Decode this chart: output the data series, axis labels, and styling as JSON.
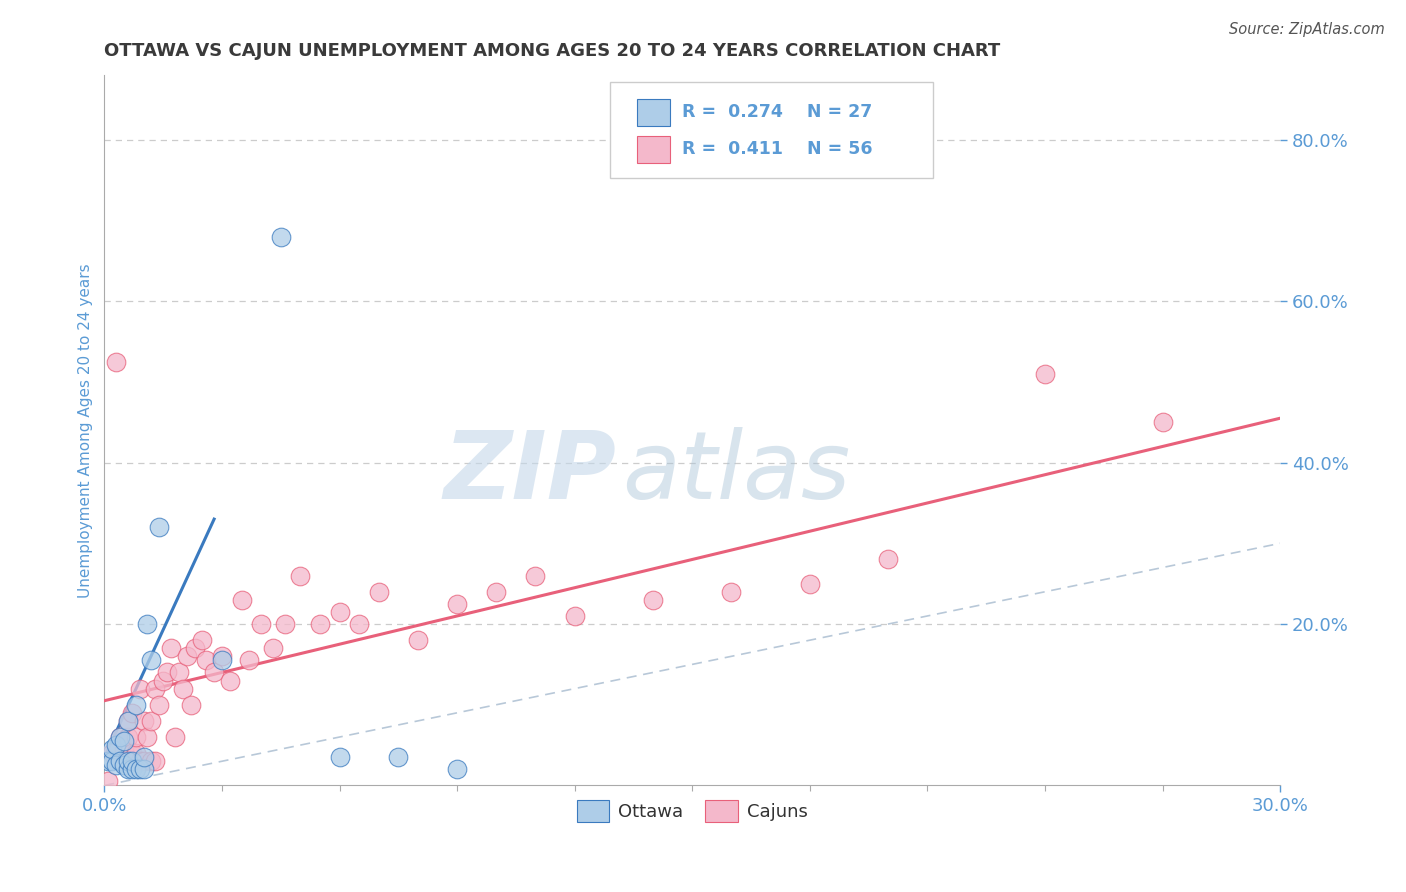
{
  "title": "OTTAWA VS CAJUN UNEMPLOYMENT AMONG AGES 20 TO 24 YEARS CORRELATION CHART",
  "source": "Source: ZipAtlas.com",
  "ylabel": "Unemployment Among Ages 20 to 24 years",
  "xlim": [
    0.0,
    0.3
  ],
  "ylim": [
    0.0,
    0.88
  ],
  "ytick_positions": [
    0.2,
    0.4,
    0.6,
    0.8
  ],
  "ytick_labels": [
    "20.0%",
    "40.0%",
    "60.0%",
    "80.0%"
  ],
  "ottawa_color": "#aecde8",
  "cajun_color": "#f4b8cb",
  "ottawa_line_color": "#3a7abf",
  "cajun_line_color": "#e8607a",
  "ref_line_color": "#b8c8d8",
  "grid_color": "#cccccc",
  "legend_R_ottawa": "0.274",
  "legend_N_ottawa": "27",
  "legend_R_cajun": "0.411",
  "legend_N_cajun": "56",
  "ottawa_x": [
    0.001,
    0.002,
    0.002,
    0.003,
    0.003,
    0.004,
    0.004,
    0.005,
    0.005,
    0.006,
    0.006,
    0.006,
    0.007,
    0.007,
    0.008,
    0.008,
    0.009,
    0.01,
    0.01,
    0.011,
    0.012,
    0.014,
    0.03,
    0.045,
    0.06,
    0.075,
    0.09
  ],
  "ottawa_y": [
    0.03,
    0.03,
    0.045,
    0.025,
    0.05,
    0.03,
    0.06,
    0.025,
    0.055,
    0.02,
    0.03,
    0.08,
    0.02,
    0.03,
    0.02,
    0.1,
    0.02,
    0.02,
    0.035,
    0.2,
    0.155,
    0.32,
    0.155,
    0.68,
    0.035,
    0.035,
    0.02
  ],
  "cajun_x": [
    0.001,
    0.002,
    0.003,
    0.004,
    0.005,
    0.006,
    0.006,
    0.007,
    0.007,
    0.008,
    0.008,
    0.009,
    0.009,
    0.01,
    0.01,
    0.011,
    0.012,
    0.012,
    0.013,
    0.013,
    0.014,
    0.015,
    0.016,
    0.017,
    0.018,
    0.019,
    0.02,
    0.021,
    0.022,
    0.023,
    0.025,
    0.026,
    0.028,
    0.03,
    0.032,
    0.035,
    0.037,
    0.04,
    0.043,
    0.046,
    0.05,
    0.055,
    0.06,
    0.065,
    0.07,
    0.08,
    0.09,
    0.1,
    0.11,
    0.12,
    0.14,
    0.16,
    0.18,
    0.2,
    0.24,
    0.27
  ],
  "cajun_y": [
    0.005,
    0.04,
    0.525,
    0.06,
    0.045,
    0.06,
    0.08,
    0.04,
    0.09,
    0.04,
    0.06,
    0.03,
    0.12,
    0.03,
    0.08,
    0.06,
    0.03,
    0.08,
    0.03,
    0.12,
    0.1,
    0.13,
    0.14,
    0.17,
    0.06,
    0.14,
    0.12,
    0.16,
    0.1,
    0.17,
    0.18,
    0.155,
    0.14,
    0.16,
    0.13,
    0.23,
    0.155,
    0.2,
    0.17,
    0.2,
    0.26,
    0.2,
    0.215,
    0.2,
    0.24,
    0.18,
    0.225,
    0.24,
    0.26,
    0.21,
    0.23,
    0.24,
    0.25,
    0.28,
    0.51,
    0.45
  ],
  "watermark_zip": "ZIP",
  "watermark_atlas": "atlas",
  "background_color": "#ffffff",
  "title_color": "#3a3a3a",
  "axis_label_color": "#5b9bd5",
  "tick_color": "#5b9bd5",
  "legend_text_color": "#5b9bd5",
  "bottom_legend_color": "#333333"
}
